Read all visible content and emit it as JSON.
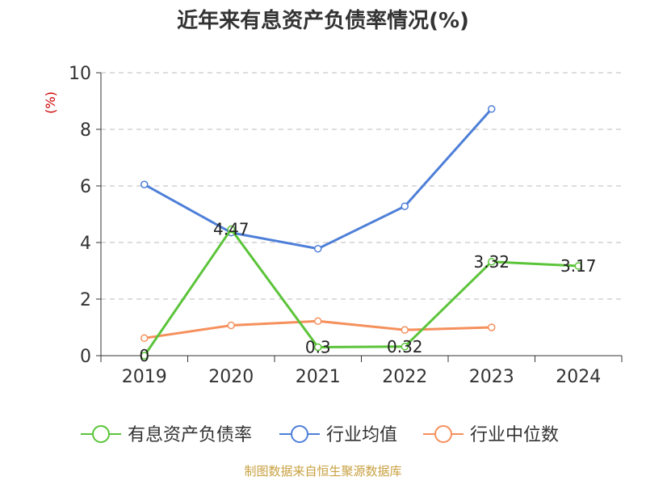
{
  "chart_data": {
    "type": "line",
    "title": "近年来有息资产负债率情况(%)",
    "ylabel": "(%)",
    "xlabel": "",
    "categories": [
      "2019",
      "2020",
      "2021",
      "2022",
      "2023",
      "2024"
    ],
    "ylim": [
      0,
      10
    ],
    "yticks": [
      0,
      2,
      4,
      6,
      8,
      10
    ],
    "grid": "horizontal dashed",
    "legend_position": "bottom",
    "series": [
      {
        "name": "有息资产负债率",
        "values": [
          0,
          4.47,
          0.3,
          0.32,
          3.32,
          3.17
        ],
        "labels": [
          "0",
          "4.47",
          "0.3",
          "0.32",
          "3.32",
          "3.17"
        ],
        "color": "#5cc43a"
      },
      {
        "name": "行业均值",
        "values": [
          6.05,
          4.35,
          3.78,
          5.28,
          8.72,
          null
        ],
        "color": "#4e7fd8"
      },
      {
        "name": "行业中位数",
        "values": [
          0.62,
          1.07,
          1.22,
          0.91,
          1.0,
          null
        ],
        "color": "#f5905c"
      }
    ]
  },
  "source_text": "制图数据来自恒生聚源数据库",
  "colors": {
    "axis": "#333333",
    "grid": "#bbbbbb",
    "ylabel": "#cc0000",
    "source": "#c8a040"
  }
}
